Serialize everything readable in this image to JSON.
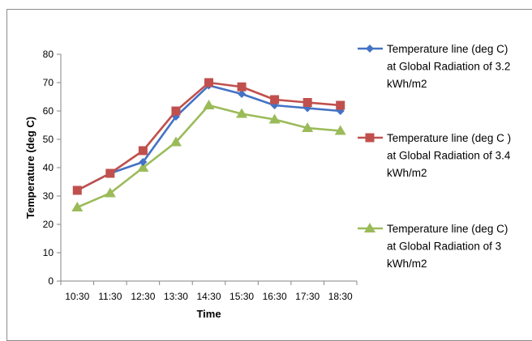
{
  "chart_data": {
    "type": "line",
    "title": "",
    "xlabel": "Time",
    "ylabel": "Temperature (deg C)",
    "categories": [
      "10:30",
      "11:30",
      "12:30",
      "13:30",
      "14:30",
      "15:30",
      "16:30",
      "17:30",
      "18:30"
    ],
    "ylim": [
      0,
      80
    ],
    "yticks": [
      0,
      10,
      20,
      30,
      40,
      50,
      60,
      70,
      80
    ],
    "grid": false,
    "legend_position": "right",
    "series": [
      {
        "name": "Temperature line (deg C) at Global Radiation of 3.2 kWh/m2",
        "legend_lines": [
          "Temperature line (deg C)",
          "at Global Radiation of 3.2",
          "kWh/m2"
        ],
        "color": "#4472c4",
        "marker": "diamond",
        "values": [
          32,
          38,
          42,
          58,
          69,
          66,
          62,
          61,
          60
        ]
      },
      {
        "name": "Temperature line (deg C ) at Global Radiation of 3.4 kWh/m2",
        "legend_lines": [
          "Temperature line (deg C )",
          "at Global Radiation of 3.4",
          "kWh/m2"
        ],
        "color": "#c0504d",
        "marker": "square",
        "values": [
          32,
          38,
          46,
          60,
          70,
          68.5,
          64,
          63,
          62
        ]
      },
      {
        "name": "Temperature line (deg C) at Global Radiation of 3 kWh/m2",
        "legend_lines": [
          "Temperature line (deg C)",
          "at Global Radiation of 3",
          "kWh/m2"
        ],
        "color": "#9bbb59",
        "marker": "triangle",
        "values": [
          26,
          31,
          40,
          49,
          62,
          59,
          57,
          54,
          53
        ]
      }
    ]
  }
}
